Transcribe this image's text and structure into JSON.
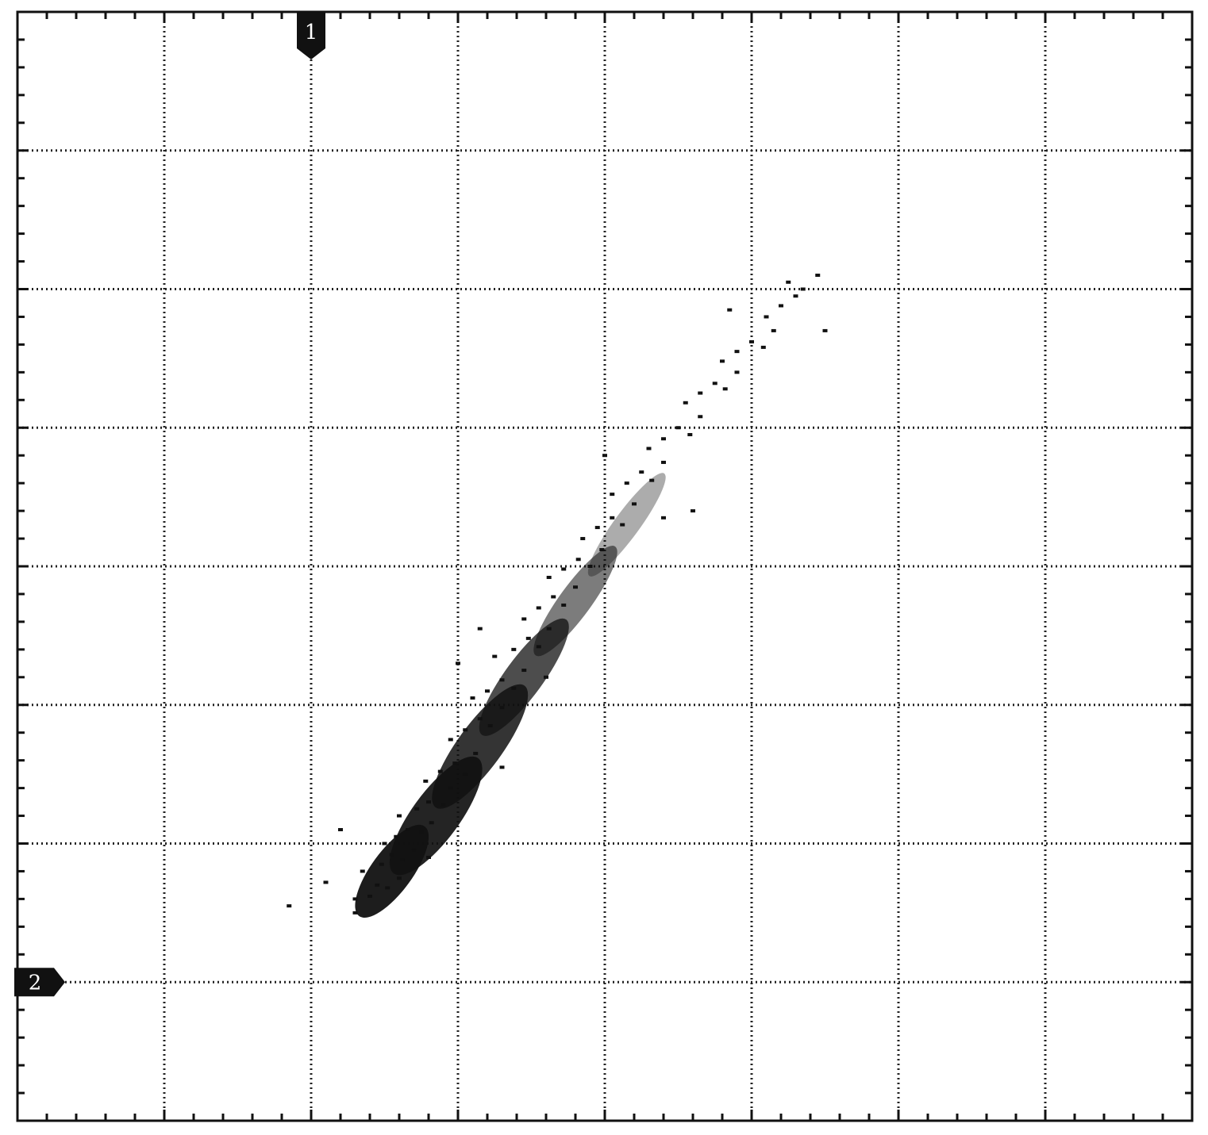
{
  "chart_data": {
    "type": "scatter",
    "title": "",
    "xlabel": "",
    "ylabel": "",
    "xlim": [
      0,
      8
    ],
    "ylim": [
      0,
      8
    ],
    "grid": true,
    "x_divisions": 8,
    "y_divisions": 8,
    "minor_ticks_per_division": 5,
    "cursors": [
      {
        "label": "1",
        "axis": "x",
        "value": 2
      },
      {
        "label": "2",
        "axis": "y",
        "value": 1
      }
    ],
    "series": [
      {
        "points": [
          [
            2.3,
            1.6
          ],
          [
            2.4,
            1.62
          ],
          [
            2.45,
            1.7
          ],
          [
            2.52,
            1.68
          ],
          [
            2.6,
            1.75
          ],
          [
            2.35,
            1.8
          ],
          [
            2.48,
            1.85
          ],
          [
            2.55,
            1.92
          ],
          [
            2.62,
            1.88
          ],
          [
            2.7,
            1.95
          ],
          [
            2.5,
            2.0
          ],
          [
            2.58,
            2.05
          ],
          [
            2.66,
            2.1
          ],
          [
            2.75,
            2.08
          ],
          [
            2.82,
            2.15
          ],
          [
            2.6,
            2.2
          ],
          [
            2.72,
            2.25
          ],
          [
            2.8,
            2.3
          ],
          [
            2.9,
            2.28
          ],
          [
            2.95,
            2.4
          ],
          [
            2.78,
            2.45
          ],
          [
            2.88,
            2.52
          ],
          [
            2.98,
            2.58
          ],
          [
            3.05,
            2.5
          ],
          [
            3.12,
            2.65
          ],
          [
            2.95,
            2.75
          ],
          [
            3.05,
            2.82
          ],
          [
            3.15,
            2.9
          ],
          [
            3.22,
            2.85
          ],
          [
            3.3,
            2.98
          ],
          [
            3.1,
            3.05
          ],
          [
            3.2,
            3.1
          ],
          [
            3.3,
            3.18
          ],
          [
            3.38,
            3.12
          ],
          [
            3.45,
            3.25
          ],
          [
            3.25,
            3.35
          ],
          [
            3.38,
            3.4
          ],
          [
            3.48,
            3.48
          ],
          [
            3.55,
            3.42
          ],
          [
            3.62,
            3.55
          ],
          [
            3.45,
            3.62
          ],
          [
            3.55,
            3.7
          ],
          [
            3.65,
            3.78
          ],
          [
            3.72,
            3.72
          ],
          [
            3.8,
            3.85
          ],
          [
            3.62,
            3.92
          ],
          [
            3.72,
            3.98
          ],
          [
            3.82,
            4.05
          ],
          [
            3.9,
            4.0
          ],
          [
            3.98,
            4.12
          ],
          [
            3.85,
            4.2
          ],
          [
            3.95,
            4.28
          ],
          [
            4.05,
            4.35
          ],
          [
            4.12,
            4.3
          ],
          [
            4.2,
            4.45
          ],
          [
            4.05,
            4.52
          ],
          [
            4.15,
            4.6
          ],
          [
            4.25,
            4.68
          ],
          [
            4.32,
            4.62
          ],
          [
            4.4,
            4.75
          ],
          [
            4.3,
            4.85
          ],
          [
            4.4,
            4.92
          ],
          [
            4.5,
            5.0
          ],
          [
            4.58,
            4.95
          ],
          [
            4.65,
            5.08
          ],
          [
            4.55,
            5.18
          ],
          [
            4.65,
            5.25
          ],
          [
            4.75,
            5.32
          ],
          [
            4.82,
            5.28
          ],
          [
            4.9,
            5.4
          ],
          [
            4.8,
            5.48
          ],
          [
            4.9,
            5.55
          ],
          [
            5.0,
            5.62
          ],
          [
            5.08,
            5.58
          ],
          [
            5.15,
            5.7
          ],
          [
            5.1,
            5.8
          ],
          [
            5.2,
            5.88
          ],
          [
            5.3,
            5.95
          ],
          [
            5.35,
            6.0
          ],
          [
            5.45,
            6.1
          ],
          [
            2.1,
            1.72
          ],
          [
            2.2,
            2.1
          ],
          [
            2.8,
            1.9
          ],
          [
            3.3,
            2.55
          ],
          [
            3.0,
            3.3
          ],
          [
            3.6,
            3.2
          ],
          [
            4.4,
            4.35
          ],
          [
            4.0,
            4.8
          ],
          [
            5.5,
            5.7
          ],
          [
            5.25,
            6.05
          ],
          [
            1.85,
            1.55
          ],
          [
            2.3,
            1.5
          ],
          [
            3.15,
            3.55
          ],
          [
            4.6,
            4.4
          ],
          [
            4.85,
            5.85
          ]
        ]
      }
    ]
  }
}
